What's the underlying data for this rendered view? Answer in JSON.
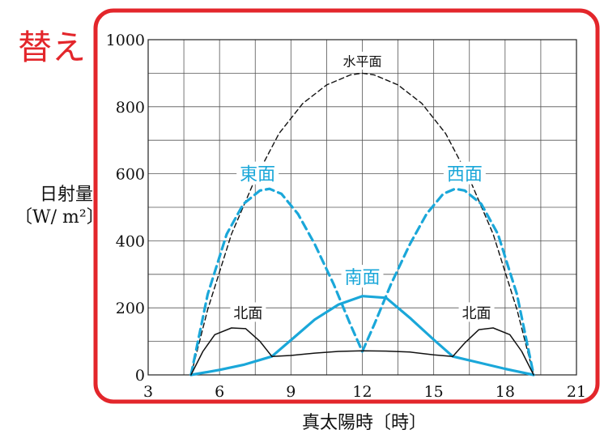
{
  "colors": {
    "frame": "#e3262b",
    "crop_word": "#e3262b",
    "cyan": "#1aa7d9",
    "black": "#111111",
    "grid": "#555555"
  },
  "crop_word": "替え",
  "chart_data": {
    "type": "line",
    "title": "",
    "xlabel": "真太陽時〔時〕",
    "ylabel_line1": "日射量",
    "ylabel_line2": "〔W/ m²〕",
    "xlim": [
      3,
      21
    ],
    "ylim": [
      0,
      1000
    ],
    "x_ticks": [
      3,
      6,
      9,
      12,
      15,
      18,
      21
    ],
    "x_tick_labels": [
      "3",
      "6",
      "9",
      "12",
      "15",
      "18",
      "21"
    ],
    "y_ticks": [
      0,
      200,
      400,
      600,
      800,
      1000
    ],
    "y_tick_labels": [
      "0",
      "200",
      "400",
      "600",
      "800",
      "1000"
    ],
    "grid": true,
    "grid_x": [
      3,
      4.5,
      6,
      7.5,
      9,
      10.5,
      12,
      13.5,
      15,
      16.5,
      18,
      19.5,
      21
    ],
    "grid_y": [
      0,
      100,
      200,
      300,
      400,
      500,
      600,
      700,
      800,
      900,
      1000
    ],
    "series": [
      {
        "name": "水平面",
        "color": "#111111",
        "dash": "dashed-thin",
        "points": [
          [
            4.8,
            0
          ],
          [
            5.5,
            195
          ],
          [
            6.5,
            420
          ],
          [
            7.5,
            585
          ],
          [
            8.5,
            720
          ],
          [
            9.5,
            810
          ],
          [
            10.5,
            865
          ],
          [
            11.5,
            895
          ],
          [
            12,
            900
          ],
          [
            12.5,
            895
          ],
          [
            13.5,
            865
          ],
          [
            14.5,
            810
          ],
          [
            15.5,
            720
          ],
          [
            16.5,
            585
          ],
          [
            17.5,
            420
          ],
          [
            18.5,
            195
          ],
          [
            19.2,
            0
          ]
        ]
      },
      {
        "name": "東面",
        "color": "#1aa7d9",
        "dash": "dashed-thick",
        "points": [
          [
            4.8,
            0
          ],
          [
            5.5,
            240
          ],
          [
            6.3,
            420
          ],
          [
            7.0,
            510
          ],
          [
            7.7,
            550
          ],
          [
            8.1,
            555
          ],
          [
            8.6,
            540
          ],
          [
            9.3,
            480
          ],
          [
            10.0,
            390
          ],
          [
            10.8,
            270
          ],
          [
            11.5,
            150
          ],
          [
            12,
            70
          ]
        ]
      },
      {
        "name": "西面",
        "color": "#1aa7d9",
        "dash": "dashed-thick",
        "points": [
          [
            12,
            70
          ],
          [
            12.5,
            150
          ],
          [
            13.2,
            270
          ],
          [
            14.0,
            390
          ],
          [
            14.7,
            480
          ],
          [
            15.4,
            540
          ],
          [
            15.9,
            555
          ],
          [
            16.3,
            550
          ],
          [
            17.0,
            510
          ],
          [
            17.7,
            420
          ],
          [
            18.5,
            240
          ],
          [
            19.2,
            0
          ]
        ]
      },
      {
        "name": "南面",
        "color": "#1aa7d9",
        "dash": "solid-thick",
        "points": [
          [
            4.8,
            0
          ],
          [
            6,
            15
          ],
          [
            7,
            30
          ],
          [
            8.2,
            55
          ],
          [
            9.1,
            110
          ],
          [
            10,
            165
          ],
          [
            11,
            210
          ],
          [
            12,
            235
          ],
          [
            13,
            230
          ],
          [
            14,
            170
          ],
          [
            15,
            105
          ],
          [
            15.8,
            55
          ],
          [
            17,
            35
          ],
          [
            18,
            18
          ],
          [
            19.2,
            0
          ]
        ]
      },
      {
        "name": "北面",
        "color": "#111111",
        "dash": "solid-thin",
        "points": [
          [
            4.8,
            0
          ],
          [
            5.3,
            70
          ],
          [
            5.8,
            120
          ],
          [
            6.5,
            140
          ],
          [
            7.1,
            138
          ],
          [
            7.7,
            100
          ],
          [
            8.2,
            55
          ],
          [
            9,
            58
          ],
          [
            10,
            65
          ],
          [
            11,
            70
          ],
          [
            12,
            72
          ],
          [
            13,
            71
          ],
          [
            14,
            68
          ],
          [
            15,
            60
          ],
          [
            15.8,
            55
          ],
          [
            16.3,
            95
          ],
          [
            16.9,
            135
          ],
          [
            17.5,
            140
          ],
          [
            18.2,
            120
          ],
          [
            18.7,
            70
          ],
          [
            19.2,
            0
          ]
        ]
      }
    ],
    "annotations": [
      {
        "text": "水平面",
        "x": 12,
        "y": 935,
        "color": "#111111",
        "size": 16
      },
      {
        "text": "東面",
        "x": 7.6,
        "y": 600,
        "color": "#1aa7d9",
        "size": 22
      },
      {
        "text": "西面",
        "x": 16.3,
        "y": 600,
        "color": "#1aa7d9",
        "size": 22
      },
      {
        "text": "南面",
        "x": 12,
        "y": 292,
        "color": "#1aa7d9",
        "size": 22
      },
      {
        "text": "北面",
        "x": 7.2,
        "y": 185,
        "color": "#111111",
        "size": 18
      },
      {
        "text": "北面",
        "x": 16.8,
        "y": 185,
        "color": "#111111",
        "size": 18
      }
    ]
  }
}
